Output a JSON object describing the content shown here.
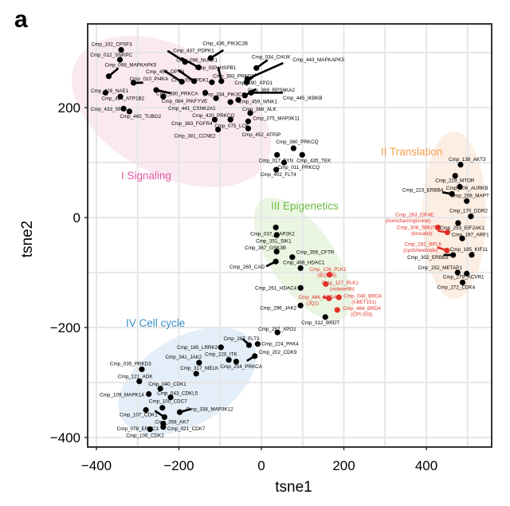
{
  "panel_letter": "a",
  "chart_data": {
    "type": "scatter",
    "title": "",
    "xlabel": "tsne1",
    "ylabel": "tsne2",
    "xlim": [
      -420,
      550
    ],
    "ylim": [
      -420,
      350
    ],
    "xticks": [
      -400,
      -200,
      0,
      200,
      400
    ],
    "yticks": [
      -400,
      -200,
      0,
      200
    ],
    "grid": true,
    "legend": "none",
    "groups": [
      {
        "name": "I Signaling",
        "color": "#e4579a",
        "fill": "#fbe9f1"
      },
      {
        "name": "II Translation",
        "color": "#f5a04a",
        "fill": "#fdeee3"
      },
      {
        "name": "III Epigenetics",
        "color": "#6dbb45",
        "fill": "#eaf6e2"
      },
      {
        "name": "IV Cell cycle",
        "color": "#3a8fc8",
        "fill": "#e4eef8"
      }
    ],
    "colors": {
      "normal": "#000000",
      "highlight": "#e2302a"
    },
    "points": [
      {
        "label": "Cmp_102_CPSF3",
        "x": -340,
        "y": 305,
        "group": 0
      },
      {
        "label": "Cmp_012_SNRPC",
        "x": -343,
        "y": 287,
        "group": 0
      },
      {
        "label": "Cmp_098_MAPKAPK5",
        "x": -370,
        "y": 257,
        "group": 0
      },
      {
        "label": "Cmp_010_PI4KA",
        "x": -310,
        "y": 245,
        "group": 0
      },
      {
        "label": "Cmp_428_NAE1",
        "x": -342,
        "y": 220,
        "group": 0
      },
      {
        "label": "Cmp_434_ATP1B2",
        "x": -378,
        "y": 227,
        "group": 0
      },
      {
        "label": "Cmp_433_SRC",
        "x": -334,
        "y": 198,
        "group": 0
      },
      {
        "label": "Cmp_465_TUBG2",
        "x": -320,
        "y": 193,
        "group": 0
      },
      {
        "label": "Cmp_437_PDPK1",
        "x": -185,
        "y": 283,
        "group": 0
      },
      {
        "label": "Cmp_096_NUAK1",
        "x": -152,
        "y": 273,
        "group": 0
      },
      {
        "label": "Cmp_458_OPTN",
        "x": -193,
        "y": 247,
        "group": 0
      },
      {
        "label": "Cmp_059_PDK1",
        "x": -163,
        "y": 248,
        "group": 0
      },
      {
        "label": "Cmp_064_PIKFYVE",
        "x": -238,
        "y": 220,
        "group": 0
      },
      {
        "label": "Cmp_380_PRKCA",
        "x": -255,
        "y": 232,
        "group": 0
      },
      {
        "label": "Cmp_436_PIK3C2B",
        "x": -123,
        "y": 290,
        "group": 0
      },
      {
        "label": "Cmp_030_HSPB1",
        "x": -97,
        "y": 248,
        "group": 0
      },
      {
        "label": "Cmp_393_PRKD3",
        "x": -120,
        "y": 246,
        "group": 0
      },
      {
        "label": "Cmp_334_PIK3CG",
        "x": -136,
        "y": 227,
        "group": 0
      },
      {
        "label": "Cmp_441_CSNK2A1",
        "x": -110,
        "y": 217,
        "group": 0
      },
      {
        "label": "Cmp_420_PRKCQ",
        "x": -75,
        "y": 210,
        "group": 0
      },
      {
        "label": "Cmp_034_CHUK",
        "x": -12,
        "y": 272,
        "group": 0
      },
      {
        "label": "Cmp_390_XPO1",
        "x": -36,
        "y": 246,
        "group": 0
      },
      {
        "label": "Cmp_443_MAPKAPK5",
        "x": -34,
        "y": 252,
        "group": 0
      },
      {
        "label": "Cmp_369_RPS6KA2",
        "x": -40,
        "y": 222,
        "group": 0
      },
      {
        "label": "Cmp_445_IKBKB",
        "x": -25,
        "y": 227,
        "group": 0
      },
      {
        "label": "Cmp_459_WNK1",
        "x": -56,
        "y": 214,
        "group": 0
      },
      {
        "label": "Cmp_366_ALK",
        "x": -27,
        "y": 190,
        "group": 0
      },
      {
        "label": "Cmp_363_FGFR4",
        "x": -113,
        "y": 178,
        "group": 0
      },
      {
        "label": "Cmp_075_LCK",
        "x": -75,
        "y": 178,
        "group": 0
      },
      {
        "label": "Cmp_375_MAP3K11",
        "x": -32,
        "y": 175,
        "group": 0
      },
      {
        "label": "Cmp_381_CCNE2",
        "x": -105,
        "y": 160,
        "group": 0
      },
      {
        "label": "Cmp_452_ATRIP",
        "x": -32,
        "y": 162,
        "group": 0
      },
      {
        "label": "Cmp_360_PRKCQ",
        "x": 78,
        "y": 126,
        "group": 0
      },
      {
        "label": "Cmp_017_FYN",
        "x": 38,
        "y": 114,
        "group": 0
      },
      {
        "label": "Cmp_435_TEK",
        "x": 99,
        "y": 114,
        "group": 0
      },
      {
        "label": "Cmp_011_PRKCQ",
        "x": 55,
        "y": 100,
        "group": 0
      },
      {
        "label": "Cmp_402_FLT4",
        "x": 36,
        "y": 87,
        "group": 0
      },
      {
        "label": "Cmp_138_AKT3",
        "x": 483,
        "y": 96,
        "group": 1
      },
      {
        "label": "Cmp_229_MTOR",
        "x": 470,
        "y": 76,
        "group": 1
      },
      {
        "label": "Cmp_206_AURKB",
        "x": 481,
        "y": 56,
        "group": 1
      },
      {
        "label": "Cmp_223_ERBB4",
        "x": 462,
        "y": 43,
        "group": 1
      },
      {
        "label": "Cmp_208_MAPT",
        "x": 498,
        "y": 30,
        "group": 1
      },
      {
        "label": "Cmp_170_DDR2",
        "x": 508,
        "y": 2,
        "group": 1
      },
      {
        "label": "Cmp_253_EIF2AK1",
        "x": 477,
        "y": -10,
        "group": 1
      },
      {
        "label": "Cmp_263_EIF4E (homoharringtonine)",
        "x": 428,
        "y": -18,
        "group": 1,
        "highlight": true
      },
      {
        "label": "Cmp_308_SMUT (brusatol)",
        "x": 451,
        "y": -27,
        "group": 1,
        "highlight": true
      },
      {
        "label": "Cmp_282_RPL6 (cycloheximide)",
        "x": 450,
        "y": -60,
        "group": 1,
        "highlight": true
      },
      {
        "label": "Cmp_197_ARF1",
        "x": 487,
        "y": -38,
        "group": 1
      },
      {
        "label": "Cmp_195_KIF11",
        "x": 510,
        "y": -68,
        "group": 1
      },
      {
        "label": "Cmp_302_ERBB3",
        "x": 465,
        "y": -68,
        "group": 1
      },
      {
        "label": "Cmp_252_METAP1",
        "x": 476,
        "y": -100,
        "group": 1
      },
      {
        "label": "Cmp_279_ACVR1",
        "x": 498,
        "y": -102,
        "group": 1
      },
      {
        "label": "Cmp_272_CDK4",
        "x": 488,
        "y": -118,
        "group": 1
      },
      {
        "label": "Cmp_037_MAP2K2",
        "x": 35,
        "y": -18,
        "group": 2
      },
      {
        "label": "Cmp_351_SIK1",
        "x": 37,
        "y": -32,
        "group": 2
      },
      {
        "label": "Cmp_367_GSK3B",
        "x": 37,
        "y": -62,
        "group": 2
      },
      {
        "label": "Cmp_356_CFTR",
        "x": 75,
        "y": -72,
        "group": 2
      },
      {
        "label": "Cmp_260_CAD",
        "x": 35,
        "y": -80,
        "group": 2
      },
      {
        "label": "Cmp_468_HDAC1",
        "x": 95,
        "y": -92,
        "group": 2
      },
      {
        "label": "Cmp_261_HDAC4",
        "x": 95,
        "y": -128,
        "group": 2
      },
      {
        "label": "Cmp_296_JAK2",
        "x": 95,
        "y": -160,
        "group": 2
      },
      {
        "label": "Cmp_312_BRDT",
        "x": 155,
        "y": -181,
        "group": 2
      },
      {
        "label": "Cmp_126_PLK1 (BI2536)",
        "x": 165,
        "y": -104,
        "group": 2,
        "highlight": true
      },
      {
        "label": "Cmp_127_PLK1 (volasertib)",
        "x": 156,
        "y": -121,
        "group": 2,
        "highlight": true
      },
      {
        "label": "Cmp_466_BRD4 (JQ1)",
        "x": 164,
        "y": -147,
        "group": 2,
        "highlight": true
      },
      {
        "label": "Cmp_048_BRD4 (I-BET151)",
        "x": 188,
        "y": -145,
        "group": 2,
        "highlight": true
      },
      {
        "label": "Cmp_464_BRD4 (CPI-203)",
        "x": 184,
        "y": -168,
        "group": 2,
        "highlight": true
      },
      {
        "label": "Cmp_257_XPO1",
        "x": 39,
        "y": -209,
        "group": 3
      },
      {
        "label": "Cmp_267_FLT3",
        "x": -30,
        "y": -232,
        "group": 3
      },
      {
        "label": "Cmp_224_PAK4",
        "x": -9,
        "y": -230,
        "group": 3
      },
      {
        "label": "Cmp_202_CDK9",
        "x": -16,
        "y": -252,
        "group": 3
      },
      {
        "label": "Cmp_165_LRRK2",
        "x": -98,
        "y": -236,
        "group": 3
      },
      {
        "label": "Cmp_220_ITK",
        "x": -79,
        "y": -259,
        "group": 3
      },
      {
        "label": "Cmp_254_PRKCA",
        "x": -61,
        "y": -262,
        "group": 3
      },
      {
        "label": "Cmp_341_JAK2",
        "x": -151,
        "y": -264,
        "group": 3
      },
      {
        "label": "Cmp_317_MELK",
        "x": -158,
        "y": -284,
        "group": 3
      },
      {
        "label": "Cmp_035_PRKD3",
        "x": -290,
        "y": -276,
        "group": 3
      },
      {
        "label": "Cmp_121_ADK",
        "x": -296,
        "y": -298,
        "group": 3
      },
      {
        "label": "Cmp_040_CDK1",
        "x": -245,
        "y": -311,
        "group": 3
      },
      {
        "label": "Cmp_109_MAPK14",
        "x": -273,
        "y": -321,
        "group": 3
      },
      {
        "label": "Cmp_043_CDKL5",
        "x": -220,
        "y": -327,
        "group": 3
      },
      {
        "label": "Cmp_338_MAP3K12",
        "x": -198,
        "y": -354,
        "group": 3
      },
      {
        "label": "Cmp_100_CDC7",
        "x": -240,
        "y": -346,
        "group": 3
      },
      {
        "label": "Cmp_107_CDK1",
        "x": -280,
        "y": -350,
        "group": 3
      },
      {
        "label": "Cmp_358_AK7",
        "x": -235,
        "y": -363,
        "group": 3
      },
      {
        "label": "Cmp_078_ERCC3",
        "x": -238,
        "y": -381,
        "group": 3
      },
      {
        "label": "Cmp_106_CDK2",
        "x": -270,
        "y": -385,
        "group": 3
      },
      {
        "label": "Cmp_021_CDK7",
        "x": -238,
        "y": -375,
        "group": 3
      }
    ]
  }
}
